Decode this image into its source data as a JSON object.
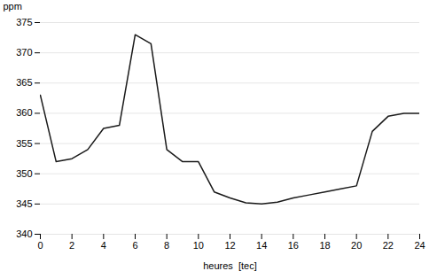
{
  "chart_data": {
    "type": "line",
    "x": [
      0,
      1,
      2,
      3,
      4,
      5,
      6,
      7,
      8,
      9,
      10,
      11,
      12,
      13,
      14,
      15,
      16,
      17,
      18,
      19,
      20,
      21,
      22,
      23,
      24
    ],
    "values": [
      363,
      352,
      352.5,
      354,
      357.5,
      358,
      373,
      371.5,
      354,
      352,
      352,
      347,
      346,
      345.2,
      345,
      345.3,
      346,
      346.5,
      347,
      347.5,
      348,
      357,
      359.5,
      360,
      360
    ],
    "xlabel": "heures  [tec]",
    "ylabel": "ppm",
    "xlim": [
      0,
      24
    ],
    "ylim": [
      340,
      375
    ],
    "xticks": [
      0,
      2,
      4,
      6,
      8,
      10,
      12,
      14,
      16,
      18,
      20,
      22,
      24
    ],
    "yticks": [
      340,
      345,
      350,
      355,
      360,
      365,
      370,
      375
    ],
    "color": "#1a1a1a",
    "grid": true
  }
}
